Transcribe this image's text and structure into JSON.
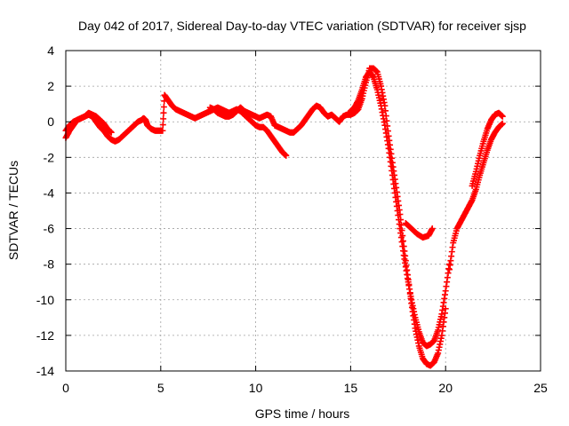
{
  "chart_data": {
    "type": "scatter",
    "title": "Day 042 of 2017, Sidereal Day-to-day VTEC variation (SDTVAR) for receiver sjsp",
    "xlabel": "GPS time / hours",
    "ylabel": "SDTVAR / TECUs",
    "xlim": [
      0,
      25
    ],
    "ylim": [
      -14,
      4
    ],
    "xticks": [
      0,
      5,
      10,
      15,
      20,
      25
    ],
    "yticks": [
      4,
      2,
      0,
      -2,
      -4,
      -6,
      -8,
      -10,
      -12,
      -14
    ],
    "grid": true,
    "legend": "none",
    "marker": "plus",
    "color": "#ff0000",
    "series": [
      {
        "points": [
          [
            0.0,
            -0.9
          ],
          [
            0.2,
            -0.5
          ],
          [
            0.4,
            -0.2
          ],
          [
            0.6,
            0.1
          ],
          [
            0.8,
            0.2
          ],
          [
            1.0,
            0.3
          ],
          [
            1.2,
            0.4
          ],
          [
            1.4,
            0.3
          ],
          [
            1.6,
            0.0
          ],
          [
            1.8,
            -0.3
          ],
          [
            2.0,
            -0.5
          ],
          [
            2.2,
            -0.8
          ],
          [
            2.4,
            -1.0
          ],
          [
            2.6,
            -1.1
          ],
          [
            2.8,
            -1.0
          ],
          [
            3.0,
            -0.8
          ],
          [
            3.2,
            -0.6
          ],
          [
            3.4,
            -0.4
          ],
          [
            3.6,
            -0.2
          ],
          [
            3.8,
            0.0
          ],
          [
            4.0,
            0.1
          ],
          [
            4.1,
            0.2
          ],
          [
            4.2,
            0.1
          ],
          [
            4.3,
            -0.2
          ],
          [
            4.5,
            -0.4
          ],
          [
            4.7,
            -0.5
          ],
          [
            4.9,
            -0.5
          ],
          [
            5.1,
            -0.5
          ],
          [
            5.2,
            1.5
          ],
          [
            5.4,
            1.2
          ],
          [
            5.6,
            0.9
          ],
          [
            5.8,
            0.7
          ],
          [
            6.0,
            0.6
          ],
          [
            6.2,
            0.5
          ],
          [
            6.4,
            0.4
          ],
          [
            6.6,
            0.3
          ],
          [
            6.8,
            0.2
          ],
          [
            7.0,
            0.3
          ],
          [
            7.2,
            0.4
          ],
          [
            7.4,
            0.5
          ],
          [
            7.6,
            0.6
          ],
          [
            7.8,
            0.7
          ],
          [
            8.0,
            0.8
          ],
          [
            8.2,
            0.7
          ],
          [
            8.4,
            0.6
          ],
          [
            8.6,
            0.5
          ],
          [
            8.8,
            0.6
          ],
          [
            9.0,
            0.7
          ],
          [
            9.2,
            0.6
          ],
          [
            9.4,
            0.4
          ],
          [
            9.6,
            0.2
          ],
          [
            9.8,
            0.0
          ],
          [
            10.0,
            -0.2
          ],
          [
            10.2,
            -0.3
          ],
          [
            10.4,
            -0.3
          ],
          [
            10.6,
            -0.5
          ],
          [
            10.8,
            -0.8
          ],
          [
            11.0,
            -1.1
          ],
          [
            11.2,
            -1.4
          ],
          [
            11.4,
            -1.7
          ],
          [
            11.6,
            -1.9
          ],
          [
            15.0,
            0.6
          ],
          [
            15.2,
            0.8
          ],
          [
            15.4,
            1.2
          ],
          [
            15.6,
            1.8
          ],
          [
            15.8,
            2.5
          ],
          [
            16.0,
            2.8
          ],
          [
            16.2,
            2.5
          ],
          [
            16.4,
            1.8
          ],
          [
            16.6,
            0.9
          ],
          [
            16.8,
            -0.2
          ],
          [
            17.0,
            -1.5
          ],
          [
            17.2,
            -3.0
          ],
          [
            17.4,
            -4.5
          ],
          [
            17.6,
            -6.0
          ],
          [
            17.8,
            -7.5
          ],
          [
            18.0,
            -8.8
          ],
          [
            18.2,
            -10.0
          ],
          [
            18.4,
            -11.0
          ],
          [
            18.6,
            -11.8
          ],
          [
            18.8,
            -12.4
          ],
          [
            19.0,
            -12.6
          ],
          [
            19.2,
            -12.5
          ],
          [
            19.4,
            -12.3
          ],
          [
            19.6,
            -11.7
          ],
          [
            19.8,
            -10.8
          ],
          [
            20.0,
            -9.5
          ],
          [
            20.2,
            -8.0
          ],
          [
            17.9,
            -5.7
          ],
          [
            18.2,
            -6.0
          ],
          [
            18.5,
            -6.3
          ],
          [
            18.8,
            -6.5
          ],
          [
            19.1,
            -6.4
          ],
          [
            19.3,
            -6.0
          ]
        ]
      },
      {
        "points": [
          [
            0.0,
            -0.5
          ],
          [
            0.2,
            -0.2
          ],
          [
            0.4,
            0.0
          ],
          [
            0.6,
            0.1
          ],
          [
            0.8,
            0.2
          ],
          [
            1.0,
            0.3
          ],
          [
            1.2,
            0.5
          ],
          [
            1.4,
            0.4
          ],
          [
            1.6,
            0.3
          ],
          [
            1.8,
            0.1
          ],
          [
            2.0,
            -0.1
          ],
          [
            2.2,
            -0.4
          ],
          [
            2.4,
            -0.6
          ],
          [
            7.6,
            0.8
          ],
          [
            7.8,
            0.7
          ],
          [
            8.0,
            0.5
          ],
          [
            8.2,
            0.4
          ],
          [
            8.4,
            0.3
          ],
          [
            8.6,
            0.3
          ],
          [
            8.8,
            0.4
          ],
          [
            9.0,
            0.6
          ],
          [
            9.2,
            0.8
          ],
          [
            9.4,
            0.6
          ],
          [
            9.6,
            0.5
          ],
          [
            9.8,
            0.4
          ],
          [
            10.0,
            0.3
          ],
          [
            10.2,
            0.2
          ],
          [
            10.4,
            0.3
          ],
          [
            10.6,
            0.4
          ],
          [
            10.8,
            0.3
          ],
          [
            11.0,
            -0.2
          ],
          [
            11.2,
            -0.3
          ],
          [
            11.4,
            -0.4
          ],
          [
            11.6,
            -0.5
          ],
          [
            11.8,
            -0.6
          ],
          [
            12.0,
            -0.6
          ],
          [
            12.2,
            -0.4
          ],
          [
            12.4,
            -0.2
          ],
          [
            12.6,
            0.1
          ],
          [
            12.8,
            0.4
          ],
          [
            13.0,
            0.7
          ],
          [
            13.2,
            0.9
          ],
          [
            13.4,
            0.8
          ],
          [
            13.6,
            0.5
          ],
          [
            13.8,
            0.3
          ],
          [
            14.0,
            0.4
          ],
          [
            14.2,
            0.2
          ],
          [
            14.4,
            0.0
          ],
          [
            14.6,
            0.3
          ],
          [
            14.8,
            0.4
          ],
          [
            15.0,
            0.4
          ],
          [
            15.2,
            0.5
          ],
          [
            15.4,
            0.7
          ],
          [
            15.6,
            1.3
          ],
          [
            15.8,
            2.2
          ],
          [
            16.0,
            3.0
          ],
          [
            16.2,
            3.0
          ],
          [
            16.4,
            2.8
          ],
          [
            16.6,
            2.0
          ],
          [
            16.8,
            0.9
          ],
          [
            17.0,
            -0.8
          ],
          [
            17.2,
            -2.3
          ],
          [
            17.4,
            -3.7
          ],
          [
            17.6,
            -5.2
          ],
          [
            17.8,
            -7.0
          ],
          [
            18.0,
            -8.6
          ],
          [
            18.2,
            -10.2
          ],
          [
            18.4,
            -11.6
          ],
          [
            18.6,
            -12.6
          ],
          [
            18.8,
            -13.3
          ],
          [
            19.0,
            -13.6
          ],
          [
            19.2,
            -13.7
          ],
          [
            19.4,
            -13.5
          ],
          [
            19.6,
            -13.0
          ],
          [
            19.8,
            -12.0
          ],
          [
            20.0,
            -10.5
          ],
          [
            20.2,
            -8.3
          ],
          [
            20.4,
            -6.8
          ],
          [
            20.6,
            -6.0
          ],
          [
            20.8,
            -5.6
          ],
          [
            21.0,
            -5.2
          ],
          [
            21.2,
            -4.8
          ],
          [
            21.4,
            -4.4
          ],
          [
            21.6,
            -3.8
          ],
          [
            21.8,
            -3.0
          ],
          [
            22.0,
            -2.3
          ],
          [
            22.2,
            -1.6
          ],
          [
            22.4,
            -1.0
          ],
          [
            22.6,
            -0.6
          ],
          [
            22.8,
            -0.3
          ],
          [
            23.0,
            -0.1
          ],
          [
            21.4,
            -3.6
          ],
          [
            21.6,
            -2.8
          ],
          [
            21.8,
            -1.9
          ],
          [
            22.0,
            -1.1
          ],
          [
            22.2,
            -0.4
          ],
          [
            22.4,
            0.1
          ],
          [
            22.6,
            0.4
          ],
          [
            22.8,
            0.5
          ],
          [
            23.0,
            0.3
          ]
        ]
      }
    ]
  }
}
